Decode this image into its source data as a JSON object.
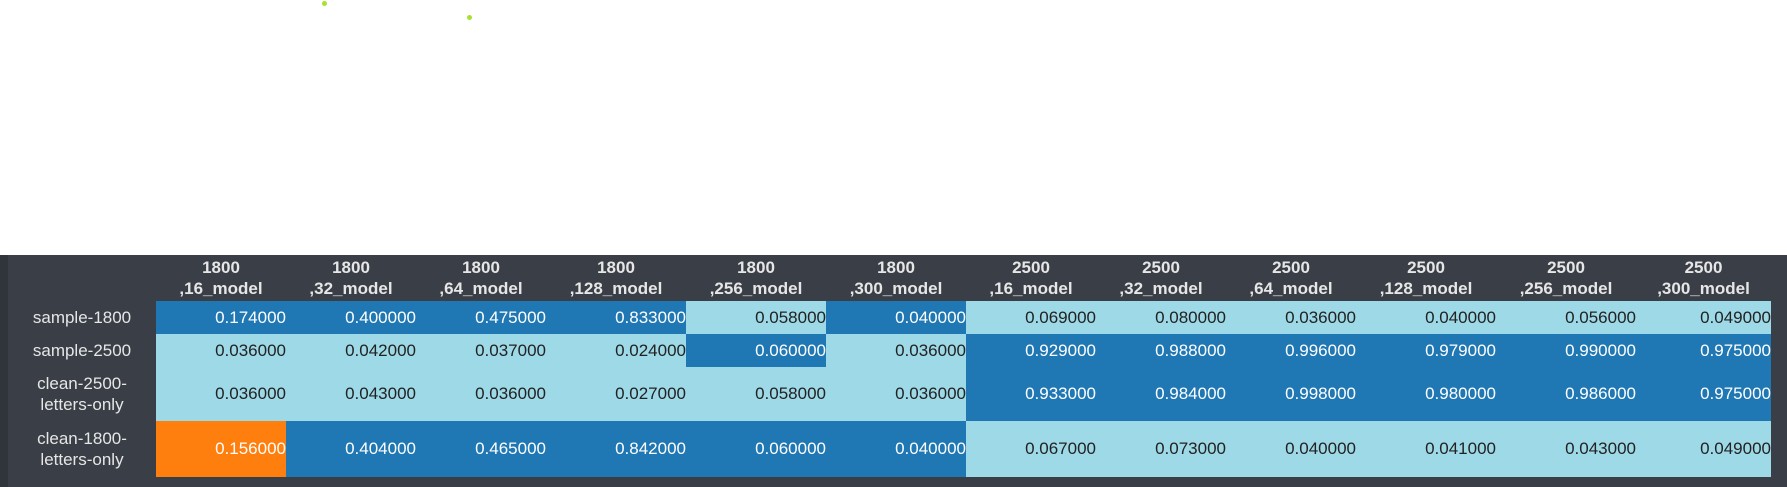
{
  "columns": [
    {
      "l1": "1800",
      "l2": ",16_model"
    },
    {
      "l1": "1800",
      "l2": ",32_model"
    },
    {
      "l1": "1800",
      "l2": ",64_model"
    },
    {
      "l1": "1800",
      "l2": ",128_model"
    },
    {
      "l1": "1800",
      "l2": ",256_model"
    },
    {
      "l1": "1800",
      "l2": ",300_model"
    },
    {
      "l1": "2500",
      "l2": ",16_model"
    },
    {
      "l1": "2500",
      "l2": ",32_model"
    },
    {
      "l1": "2500",
      "l2": ",64_model"
    },
    {
      "l1": "2500",
      "l2": ",128_model"
    },
    {
      "l1": "2500",
      "l2": ",256_model"
    },
    {
      "l1": "2500",
      "l2": ",300_model"
    }
  ],
  "rows": [
    {
      "label_l1": "sample-1800",
      "label_l2": "",
      "values": [
        "0.174000",
        "0.400000",
        "0.475000",
        "0.833000",
        "0.058000",
        "0.040000",
        "0.069000",
        "0.080000",
        "0.036000",
        "0.040000",
        "0.056000",
        "0.049000"
      ],
      "styles": [
        "dark",
        "dark",
        "dark",
        "dark",
        "light",
        "dark",
        "light",
        "light",
        "light",
        "light",
        "light",
        "light"
      ]
    },
    {
      "label_l1": "sample-2500",
      "label_l2": "",
      "values": [
        "0.036000",
        "0.042000",
        "0.037000",
        "0.024000",
        "0.060000",
        "0.036000",
        "0.929000",
        "0.988000",
        "0.996000",
        "0.979000",
        "0.990000",
        "0.975000"
      ],
      "styles": [
        "light",
        "light",
        "light",
        "light",
        "dark",
        "light",
        "dark",
        "dark",
        "dark",
        "dark",
        "dark",
        "dark"
      ]
    },
    {
      "label_l1": "clean-2500-",
      "label_l2": "letters-only",
      "values": [
        "0.036000",
        "0.043000",
        "0.036000",
        "0.027000",
        "0.058000",
        "0.036000",
        "0.933000",
        "0.984000",
        "0.998000",
        "0.980000",
        "0.986000",
        "0.975000"
      ],
      "styles": [
        "light",
        "light",
        "light",
        "light",
        "light",
        "light",
        "dark",
        "dark",
        "dark",
        "dark",
        "dark",
        "dark"
      ]
    },
    {
      "label_l1": "clean-1800-",
      "label_l2": "letters-only",
      "values": [
        "0.156000",
        "0.404000",
        "0.465000",
        "0.842000",
        "0.060000",
        "0.040000",
        "0.067000",
        "0.073000",
        "0.040000",
        "0.041000",
        "0.043000",
        "0.049000"
      ],
      "styles": [
        "orange",
        "dark",
        "dark",
        "dark",
        "dark",
        "dark",
        "light",
        "light",
        "light",
        "light",
        "light",
        "light"
      ]
    }
  ],
  "colors": {
    "dark": "#1f77b4",
    "light": "#9dd9e6",
    "orange": "#ff7f0e",
    "header_bg": "#3a3f47"
  }
}
